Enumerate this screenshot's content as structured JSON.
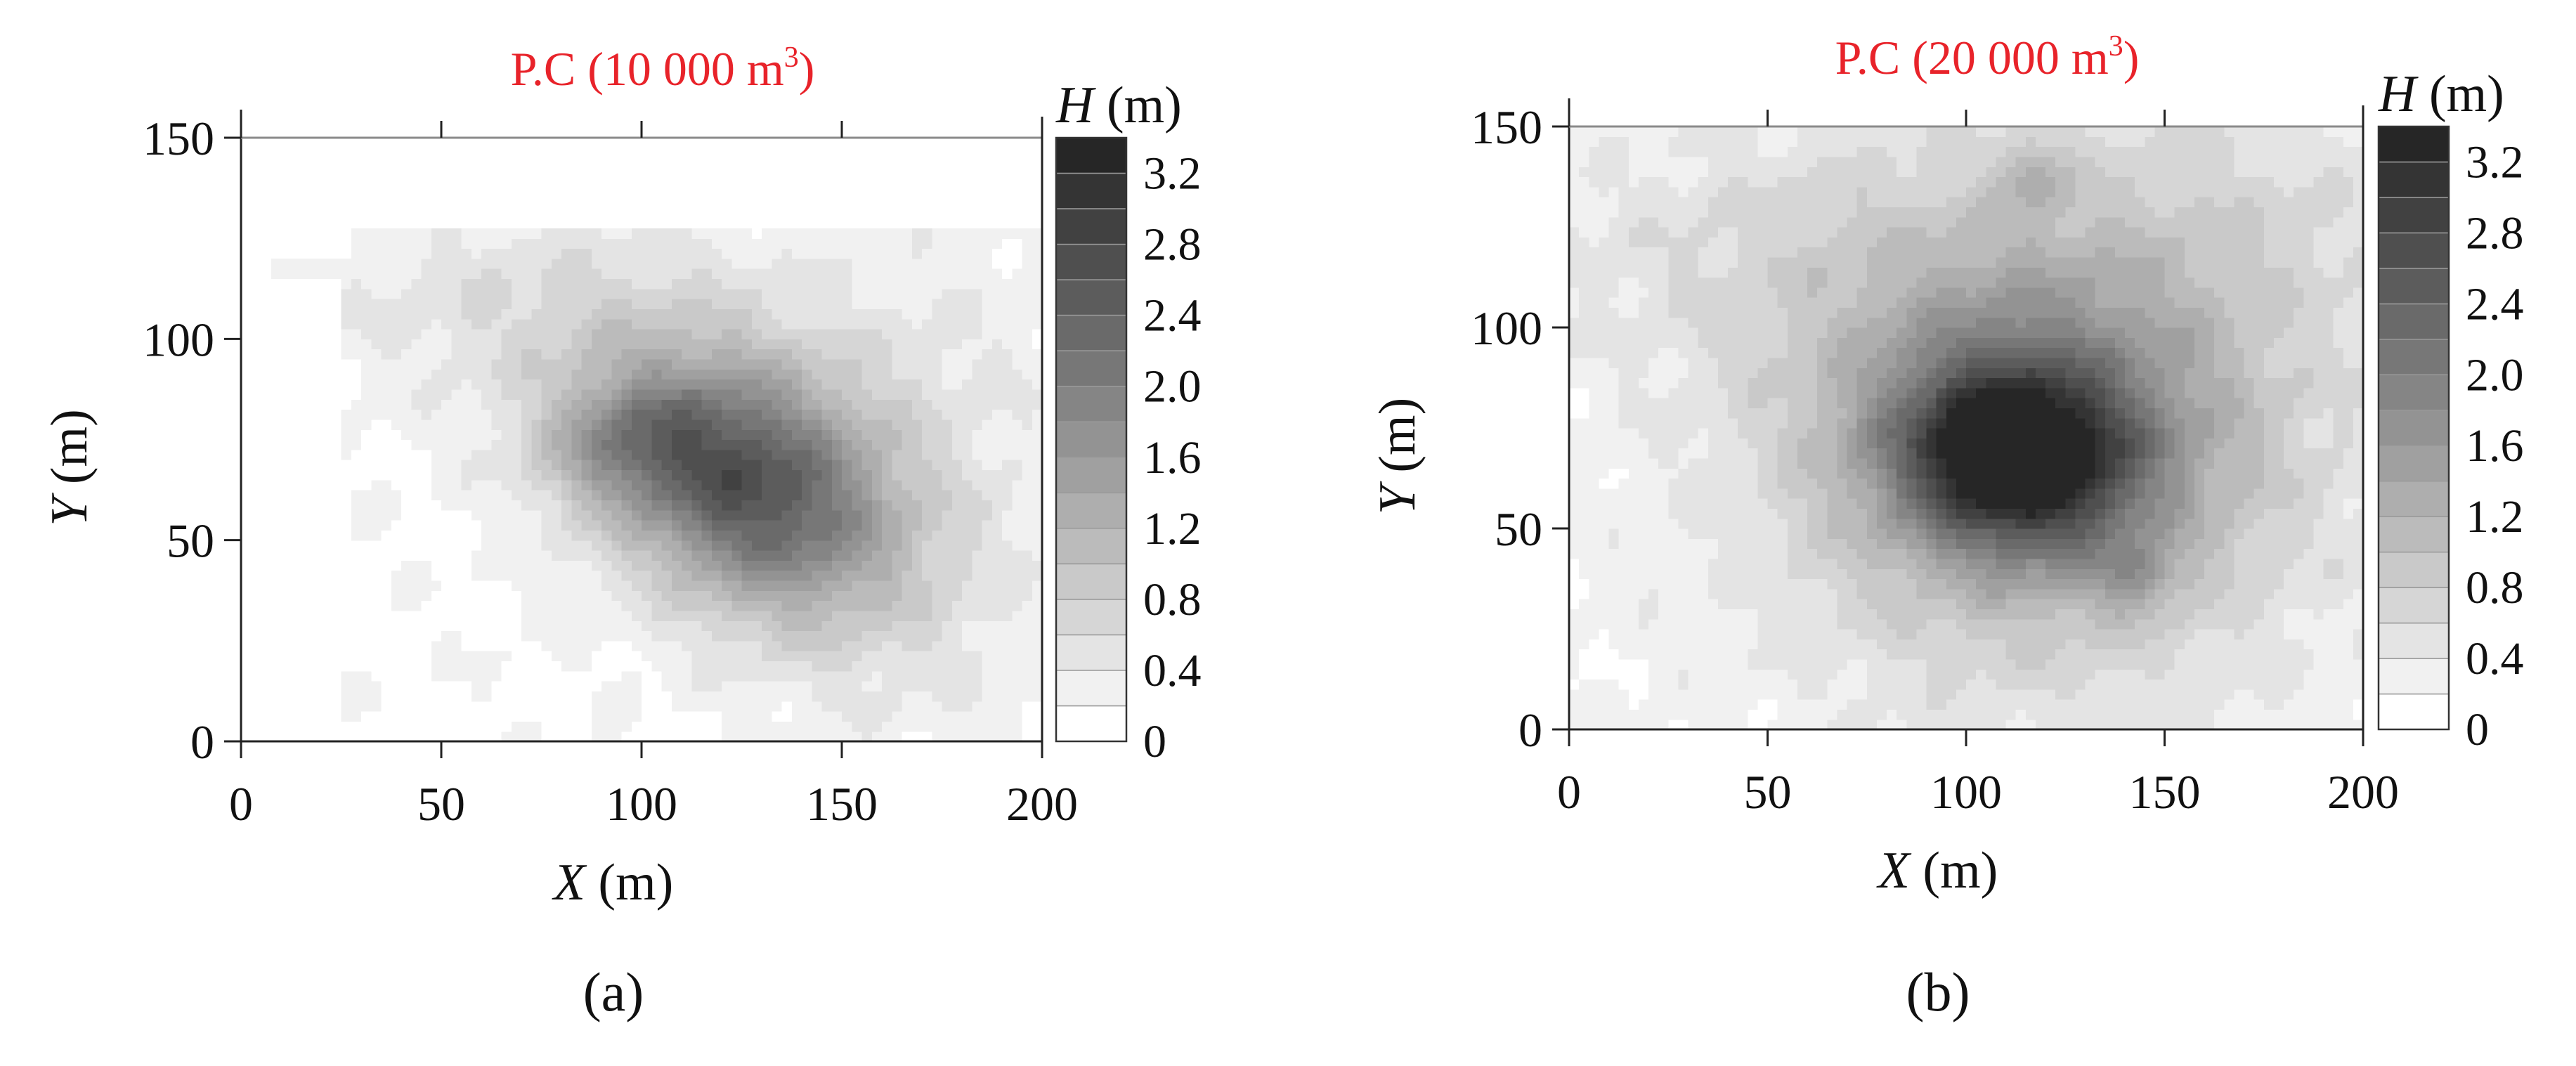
{
  "chart_data": [
    {
      "type": "heatmap",
      "subtype": "filled contour",
      "panel_label": "(a)",
      "title": "P.C (10 000 m",
      "title_superscript": "3",
      "title_suffix": ")",
      "xlabel_italic": "X",
      "xlabel_unit": " (m)",
      "ylabel_italic": "Y",
      "ylabel_unit": " (m)",
      "xlim": [
        0,
        200
      ],
      "ylim": [
        0,
        150
      ],
      "x_ticks": [
        "0",
        "50",
        "100",
        "150",
        "200"
      ],
      "y_ticks": [
        "0",
        "50",
        "100",
        "150"
      ],
      "grid": false,
      "field": {
        "base": 0.15,
        "mask": "partial",
        "peaks": [
          {
            "x": 125,
            "y": 64,
            "amp": 1.75,
            "sx": 26,
            "sy": 18,
            "rot": -0.55
          },
          {
            "x": 95,
            "y": 74,
            "amp": 0.7,
            "sx": 14,
            "sy": 10,
            "rot": 0.2
          },
          {
            "x": 140,
            "y": 55,
            "amp": 0.55,
            "sx": 40,
            "sy": 26,
            "rot": -0.6
          },
          {
            "x": 110,
            "y": 85,
            "amp": 0.35,
            "sx": 45,
            "sy": 25,
            "rot": -0.4
          },
          {
            "x": 60,
            "y": 110,
            "amp": 0.22,
            "sx": 40,
            "sy": 14,
            "rot": 0.0
          },
          {
            "x": 180,
            "y": 100,
            "amp": 0.18,
            "sx": 30,
            "sy": 25,
            "rot": 0.0
          }
        ]
      },
      "colorbar": {
        "label_italic": "H",
        "label_unit": " (m)",
        "tick_labels": [
          "0",
          "0.4",
          "0.8",
          "1.2",
          "1.6",
          "2.0",
          "2.4",
          "2.8",
          "3.2"
        ],
        "levels": [
          0,
          0.2,
          0.4,
          0.6,
          0.8,
          1.0,
          1.2,
          1.4,
          1.6,
          1.8,
          2.0,
          2.2,
          2.4,
          2.6,
          2.8,
          3.0,
          3.2,
          3.4
        ],
        "range": [
          0,
          3.4
        ],
        "color_low": "#ffffff",
        "color_high": "#262626"
      }
    },
    {
      "type": "heatmap",
      "subtype": "filled contour",
      "panel_label": "(b)",
      "title": "P.C (20 000 m",
      "title_superscript": "3",
      "title_suffix": ")",
      "xlabel_italic": "X",
      "xlabel_unit": " (m)",
      "ylabel_italic": "Y",
      "ylabel_unit": " (m)",
      "xlim": [
        0,
        200
      ],
      "ylim": [
        0,
        150
      ],
      "x_ticks": [
        "0",
        "50",
        "100",
        "150",
        "200"
      ],
      "y_ticks": [
        "0",
        "50",
        "100",
        "150"
      ],
      "grid": false,
      "field": {
        "base": 0.2,
        "mask": "none",
        "peaks": [
          {
            "x": 112,
            "y": 68,
            "amp": 2.4,
            "sx": 20,
            "sy": 15,
            "rot": -0.1
          },
          {
            "x": 118,
            "y": 75,
            "amp": 1.1,
            "sx": 36,
            "sy": 32,
            "rot": 0.0
          },
          {
            "x": 120,
            "y": 80,
            "amp": 0.7,
            "sx": 55,
            "sy": 50,
            "rot": 0.0
          },
          {
            "x": 143,
            "y": 38,
            "amp": 0.6,
            "sx": 7,
            "sy": 6,
            "rot": 0.0
          },
          {
            "x": 117,
            "y": 138,
            "amp": 0.6,
            "sx": 6,
            "sy": 6,
            "rot": 0.0
          },
          {
            "x": 40,
            "y": 120,
            "amp": 0.25,
            "sx": 45,
            "sy": 20,
            "rot": 0.0
          },
          {
            "x": 180,
            "y": 130,
            "amp": 0.2,
            "sx": 30,
            "sy": 20,
            "rot": 0.0
          }
        ]
      },
      "colorbar": {
        "label_italic": "H",
        "label_unit": " (m)",
        "tick_labels": [
          "0",
          "0.4",
          "0.8",
          "1.2",
          "1.6",
          "2.0",
          "2.4",
          "2.8",
          "3.2"
        ],
        "levels": [
          0,
          0.2,
          0.4,
          0.6,
          0.8,
          1.0,
          1.2,
          1.4,
          1.6,
          1.8,
          2.0,
          2.2,
          2.4,
          2.6,
          2.8,
          3.0,
          3.2,
          3.4
        ],
        "range": [
          0,
          3.4
        ],
        "color_low": "#ffffff",
        "color_high": "#262626"
      }
    }
  ]
}
